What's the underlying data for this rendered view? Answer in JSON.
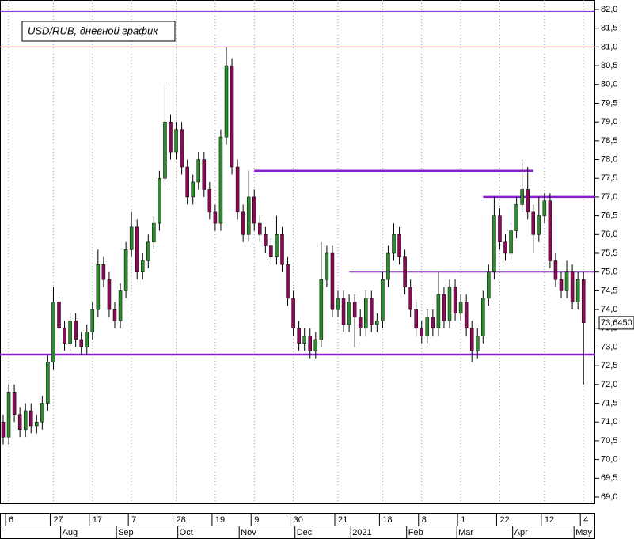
{
  "chart_data": {
    "type": "candlestick",
    "title": "USD/RUB, дневной график",
    "categories": [
      null,
      "6",
      null,
      null,
      null,
      null,
      null,
      null,
      null,
      "27",
      null,
      null,
      null,
      null,
      null,
      null,
      "17",
      null,
      null,
      null,
      null,
      null,
      null,
      "7",
      null,
      null,
      null,
      null,
      null,
      null,
      null,
      "28",
      null,
      null,
      null,
      null,
      null,
      null,
      "19",
      null,
      null,
      null,
      null,
      null,
      null,
      "9",
      null,
      null,
      null,
      null,
      null,
      null,
      "30",
      null,
      null,
      null,
      null,
      null,
      null,
      null,
      "21",
      null,
      null,
      null,
      null,
      null,
      null,
      null,
      "18",
      null,
      null,
      null,
      null,
      null,
      null,
      "8",
      null,
      null,
      null,
      null,
      null,
      null,
      "1",
      null,
      null,
      null,
      null,
      null,
      null,
      "22",
      null,
      null,
      null,
      null,
      null,
      null,
      null,
      "12",
      null,
      null,
      null,
      null,
      null,
      null,
      "4"
    ],
    "months": [
      null,
      null,
      null,
      null,
      null,
      null,
      null,
      null,
      null,
      null,
      null,
      null,
      "Aug",
      null,
      null,
      null,
      null,
      null,
      null,
      null,
      null,
      null,
      "Sep",
      null,
      null,
      null,
      null,
      null,
      null,
      null,
      null,
      null,
      null,
      "Oct",
      null,
      null,
      null,
      null,
      null,
      null,
      null,
      null,
      null,
      null,
      "Nov",
      null,
      null,
      null,
      null,
      null,
      null,
      null,
      null,
      null,
      "Dec",
      null,
      null,
      null,
      null,
      null,
      null,
      null,
      null,
      null,
      "2021",
      null,
      null,
      null,
      null,
      null,
      null,
      null,
      null,
      null,
      "Feb",
      null,
      null,
      null,
      null,
      null,
      null,
      null,
      null,
      "Mar",
      null,
      null,
      null,
      null,
      null,
      null,
      null,
      null,
      null,
      "Apr",
      null,
      null,
      null,
      null,
      null,
      null,
      null,
      null,
      null,
      null,
      "May"
    ],
    "open": [
      71.0,
      70.6,
      71.8,
      71.2,
      70.8,
      71.3,
      70.9,
      71.0,
      71.5,
      72.6,
      74.2,
      73.5,
      73.1,
      73.7,
      73.2,
      73.0,
      73.4,
      74.0,
      75.2,
      74.8,
      74.0,
      73.7,
      74.5,
      75.6,
      76.2,
      75.0,
      75.3,
      75.8,
      76.3,
      77.5,
      79.0,
      78.2,
      78.8,
      77.8,
      77.0,
      77.4,
      78.0,
      77.2,
      76.6,
      76.3,
      78.6,
      80.5,
      77.8,
      76.6,
      76.0,
      77.0,
      76.3,
      76.0,
      75.7,
      75.4,
      76.0,
      75.2,
      74.3,
      73.5,
      73.1,
      73.3,
      72.9,
      73.2,
      74.8,
      75.5,
      74.0,
      74.3,
      73.6,
      74.2,
      73.8,
      73.5,
      74.3,
      73.6,
      73.7,
      74.8,
      75.5,
      76.0,
      75.4,
      74.6,
      74.0,
      73.5,
      73.3,
      73.8,
      73.5,
      74.4,
      73.7,
      74.6,
      73.9,
      74.2,
      73.5,
      72.9,
      73.3,
      74.3,
      75.0,
      76.5,
      75.8,
      75.5,
      76.1,
      76.8,
      77.2,
      76.6,
      76.0,
      76.5,
      76.9,
      75.3,
      74.8,
      74.5,
      75.0,
      74.2,
      74.8
    ],
    "high": [
      71.2,
      72.0,
      72.0,
      71.4,
      71.5,
      71.5,
      71.2,
      71.7,
      72.8,
      74.6,
      74.4,
      73.7,
      73.9,
      73.9,
      73.4,
      73.6,
      74.2,
      75.6,
      75.4,
      75.0,
      74.2,
      74.7,
      75.8,
      76.6,
      76.4,
      75.5,
      76.0,
      76.5,
      77.7,
      80.0,
      79.2,
      79.0,
      79.0,
      78.0,
      77.6,
      78.2,
      78.2,
      77.4,
      76.8,
      78.8,
      81.0,
      80.7,
      78.0,
      76.8,
      77.7,
      77.2,
      76.5,
      76.2,
      75.9,
      76.5,
      76.2,
      75.4,
      74.5,
      73.7,
      73.5,
      73.5,
      73.4,
      75.8,
      75.7,
      75.7,
      74.5,
      74.5,
      74.4,
      74.4,
      74.0,
      74.5,
      74.5,
      73.9,
      75.0,
      75.7,
      76.3,
      76.2,
      75.6,
      74.8,
      74.2,
      73.7,
      74.0,
      74.0,
      75.0,
      74.6,
      74.8,
      74.8,
      74.4,
      74.4,
      73.7,
      73.5,
      74.5,
      75.2,
      77.0,
      76.7,
      76.0,
      76.3,
      77.0,
      78.0,
      77.8,
      76.8,
      77.0,
      77.1,
      77.1,
      75.5,
      75.0,
      75.3,
      75.2,
      75.0,
      75.0
    ],
    "low": [
      70.4,
      70.4,
      71.0,
      70.6,
      70.6,
      70.7,
      70.7,
      70.8,
      71.3,
      72.4,
      73.3,
      72.9,
      72.9,
      73.0,
      72.8,
      72.8,
      73.2,
      73.8,
      74.6,
      73.8,
      73.5,
      73.5,
      74.3,
      75.4,
      74.8,
      74.8,
      75.1,
      75.6,
      76.1,
      77.3,
      78.0,
      78.0,
      77.6,
      76.8,
      76.8,
      77.2,
      77.0,
      76.4,
      76.1,
      76.1,
      78.4,
      77.6,
      76.4,
      75.8,
      75.8,
      76.1,
      75.8,
      75.5,
      75.2,
      75.2,
      75.0,
      74.1,
      73.3,
      72.9,
      72.9,
      72.7,
      72.7,
      73.0,
      74.6,
      73.8,
      73.8,
      73.4,
      73.4,
      73.0,
      73.3,
      73.3,
      73.4,
      73.4,
      73.5,
      74.6,
      75.3,
      75.2,
      74.4,
      73.8,
      73.3,
      73.1,
      73.1,
      73.3,
      73.3,
      73.5,
      73.5,
      73.7,
      73.7,
      73.3,
      72.6,
      72.7,
      73.1,
      74.1,
      74.8,
      75.6,
      75.3,
      75.3,
      75.9,
      76.6,
      76.4,
      75.5,
      75.8,
      76.3,
      75.1,
      74.6,
      74.3,
      74.3,
      74.0,
      74.0,
      72.0
    ],
    "close": [
      70.6,
      71.8,
      71.2,
      70.8,
      71.3,
      70.9,
      71.0,
      71.5,
      72.6,
      74.2,
      73.5,
      73.1,
      73.7,
      73.2,
      73.0,
      73.4,
      74.0,
      75.2,
      74.8,
      74.0,
      73.7,
      74.5,
      75.6,
      76.2,
      75.0,
      75.3,
      75.8,
      76.3,
      77.5,
      79.0,
      78.2,
      78.8,
      77.8,
      77.0,
      77.4,
      78.0,
      77.2,
      76.6,
      76.3,
      78.6,
      80.5,
      77.8,
      76.6,
      76.0,
      77.0,
      76.3,
      76.0,
      75.7,
      75.4,
      76.0,
      75.2,
      74.3,
      73.5,
      73.1,
      73.3,
      72.9,
      73.2,
      74.8,
      75.5,
      74.0,
      74.3,
      73.6,
      74.2,
      73.8,
      73.5,
      74.3,
      73.6,
      73.7,
      74.8,
      75.5,
      76.0,
      75.4,
      74.6,
      74.0,
      73.5,
      73.3,
      73.8,
      73.5,
      74.4,
      73.7,
      74.6,
      73.9,
      74.2,
      73.5,
      72.9,
      73.3,
      74.3,
      75.0,
      76.5,
      75.8,
      75.5,
      76.1,
      76.8,
      77.2,
      76.6,
      76.0,
      76.5,
      76.9,
      75.3,
      74.8,
      74.5,
      75.0,
      74.2,
      74.8,
      73.65
    ],
    "up_color": "#2e8b2e",
    "down_color": "#8a0a55",
    "level_color": "#8a1fd0",
    "levels": [
      {
        "value": 81.95,
        "style": "thin"
      },
      {
        "value": 81.0,
        "style": "thin"
      },
      {
        "value": 77.7,
        "from": 45,
        "to": 95,
        "style": "thick"
      },
      {
        "value": 77.0,
        "from": 86,
        "style": "thick"
      },
      {
        "value": 75.0,
        "from": 62,
        "style": "thin"
      },
      {
        "value": 72.8,
        "style": "thick"
      }
    ],
    "last_price": {
      "value": 73.645,
      "label": "73,6450"
    },
    "ylim": [
      69.0,
      82.0
    ],
    "grid": "x",
    "yticks": [
      {
        "value": 69.0,
        "label": "69,0"
      },
      {
        "value": 69.5,
        "label": "69,5"
      },
      {
        "value": 70.0,
        "label": "70,0"
      },
      {
        "value": 70.5,
        "label": "70,5"
      },
      {
        "value": 71.0,
        "label": "71,0"
      },
      {
        "value": 71.5,
        "label": "71,5"
      },
      {
        "value": 72.0,
        "label": "72,0"
      },
      {
        "value": 72.5,
        "label": "72,5"
      },
      {
        "value": 73.0,
        "label": "73,0"
      },
      {
        "value": 73.5,
        "label": "73,5"
      },
      {
        "value": 74.0,
        "label": "74,0"
      },
      {
        "value": 74.5,
        "label": "74,5"
      },
      {
        "value": 75.0,
        "label": "75,0"
      },
      {
        "value": 75.5,
        "label": "75,5"
      },
      {
        "value": 76.0,
        "label": "76,0"
      },
      {
        "value": 76.5,
        "label": "76,5"
      },
      {
        "value": 77.0,
        "label": "77,0"
      },
      {
        "value": 77.5,
        "label": "77,5"
      },
      {
        "value": 78.0,
        "label": "78,0"
      },
      {
        "value": 78.5,
        "label": "78,5"
      },
      {
        "value": 79.0,
        "label": "79,0"
      },
      {
        "value": 79.5,
        "label": "79,5"
      },
      {
        "value": 80.0,
        "label": "80,0"
      },
      {
        "value": 80.5,
        "label": "80,5"
      },
      {
        "value": 81.0,
        "label": "81,0"
      },
      {
        "value": 81.5,
        "label": "81,5"
      },
      {
        "value": 82.0,
        "label": "82,0"
      }
    ]
  }
}
